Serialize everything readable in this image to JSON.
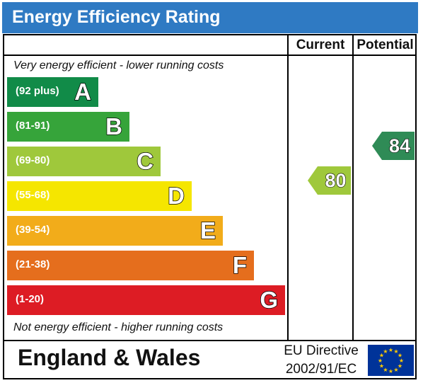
{
  "header": {
    "title": "Energy Efficiency Rating"
  },
  "columns": {
    "current_label": "Current",
    "potential_label": "Potential"
  },
  "notes": {
    "top": "Very energy efficient - lower running costs",
    "bottom": "Not energy efficient - higher running costs"
  },
  "footer": {
    "region": "England & Wales",
    "directive_line1": "EU Directive",
    "directive_line2": "2002/91/EC"
  },
  "chart_data": {
    "type": "bar",
    "title": "Energy Efficiency Rating",
    "bands": [
      {
        "letter": "A",
        "range": "(92 plus)",
        "color": "#118b48"
      },
      {
        "letter": "B",
        "range": "(81-91)",
        "color": "#36a43a"
      },
      {
        "letter": "C",
        "range": "(69-80)",
        "color": "#9fc83b"
      },
      {
        "letter": "D",
        "range": "(55-68)",
        "color": "#f5e600"
      },
      {
        "letter": "E",
        "range": "(39-54)",
        "color": "#f2ac1a"
      },
      {
        "letter": "F",
        "range": "(21-38)",
        "color": "#e56e1d"
      },
      {
        "letter": "G",
        "range": "(1-20)",
        "color": "#dd1c24"
      }
    ],
    "current": {
      "value": 80,
      "band": "C",
      "color": "#9fc83b"
    },
    "potential": {
      "value": 84,
      "band": "B",
      "color": "#2f8b56"
    }
  }
}
